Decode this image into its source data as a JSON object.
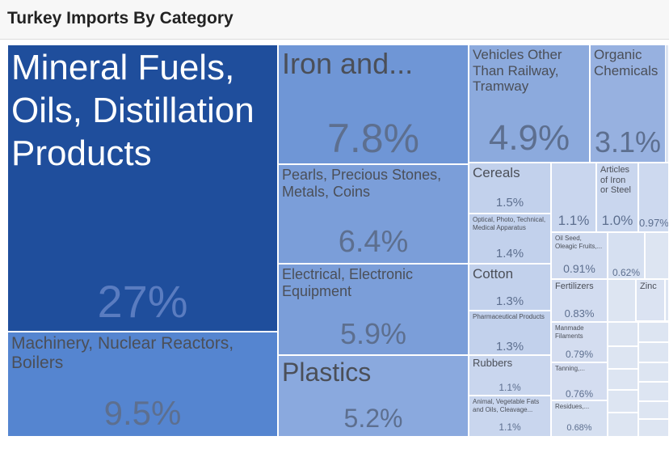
{
  "chart_data": {
    "type": "treemap",
    "title": "Turkey Imports By Category",
    "categories": [
      "Mineral Fuels, Oils, Distillation Products",
      "Machinery, Nuclear Reactors, Boilers",
      "Iron and...",
      "Pearls, Precious Stones, Metals, Coins",
      "Electrical, Electronic Equipment",
      "Plastics",
      "Vehicles Other Than Railway, Tramway",
      "Organic Chemicals",
      "Cereals",
      "Optical, Photo, Technical, Medical Apparatus",
      "Cotton",
      "Pharmaceutical Products",
      "Rubbers",
      "Animal, Vegetable Fats and Oils, Cleavage...",
      null,
      "Articles of Iron or Steel",
      null,
      "Oil Seed, Oleagic Fruits,...",
      null,
      "Fertilizers",
      "Manmade Filaments",
      "Tanning,...",
      "Residues,...",
      "Zinc"
    ],
    "values": [
      27,
      9.5,
      7.8,
      6.4,
      5.9,
      5.2,
      4.9,
      3.1,
      1.5,
      1.4,
      1.3,
      1.3,
      1.1,
      1.1,
      1.1,
      1.0,
      0.97,
      0.91,
      0.62,
      0.83,
      0.79,
      0.76,
      0.68,
      0.5
    ],
    "value_labels": [
      "27%",
      "9.5%",
      "7.8%",
      "6.4%",
      "5.9%",
      "5.2%",
      "4.9%",
      "3.1%",
      "1.5%",
      "1.4%",
      "1.3%",
      "1.3%",
      "1.1%",
      "1.1%",
      "1.1%",
      "1.0%",
      "0.97%",
      "0.91%",
      "0.62%",
      "0.83%",
      "0.79%",
      "0.76%",
      "0.68%",
      null
    ],
    "colors": [
      "#1f4e9c",
      "#5585d0",
      "#6f96d6",
      "#7b9ed9",
      "#7b9ed9",
      "#8aa9de",
      "#8caadd",
      "#97b1e0",
      "#c2d1ec",
      "#c2d1ec",
      "#c2d1ec",
      "#c2d1ec",
      "#c9d6ee",
      "#c9d6ee",
      "#c9d6ee",
      "#c9d6ee",
      "#cdd9ef",
      "#cfdaef",
      "#d6e0f1",
      "#d2dcf0",
      "#d4ddf0",
      "#d4ddf0",
      "#d6e0f1",
      "#dbe3f2"
    ]
  }
}
